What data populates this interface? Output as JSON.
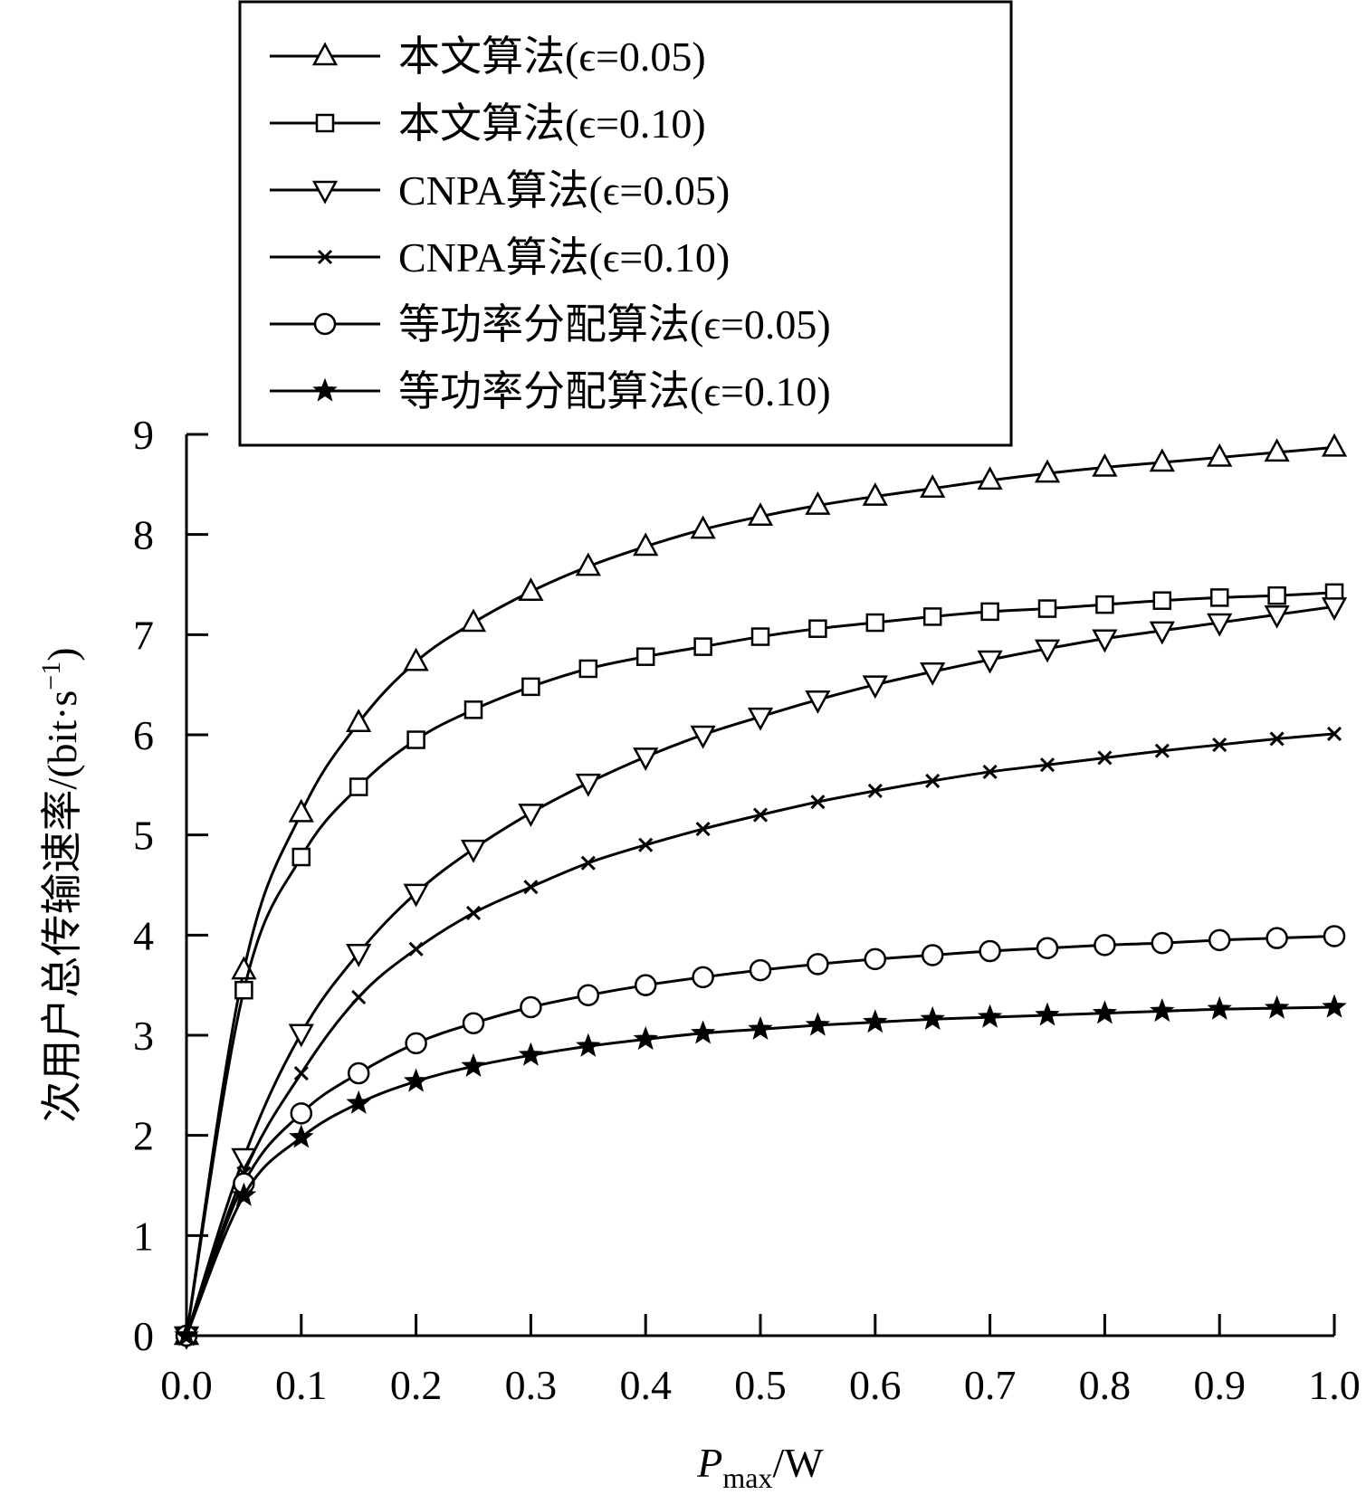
{
  "chart_data": {
    "type": "line",
    "xlabel": "P_max/W",
    "xlabel_parts": {
      "main": "P",
      "sub": "max",
      "unit": "/W"
    },
    "ylabel": "次用户总传输速率/(bit·s⁻¹)",
    "ylabel_parts": {
      "main": "次用户总传输速率/(bit·s",
      "sup": "−1",
      "close": ")"
    },
    "xlim": [
      0,
      1
    ],
    "ylim": [
      0,
      9
    ],
    "x_ticks": [
      "0.0",
      "0.1",
      "0.2",
      "0.3",
      "0.4",
      "0.5",
      "0.6",
      "0.7",
      "0.8",
      "0.9",
      "1.0"
    ],
    "y_ticks": [
      "0",
      "1",
      "2",
      "3",
      "4",
      "5",
      "6",
      "7",
      "8",
      "9"
    ],
    "grid": false,
    "legend_position": "top",
    "x": [
      0,
      0.05,
      0.1,
      0.15,
      0.2,
      0.25,
      0.3,
      0.35,
      0.4,
      0.45,
      0.5,
      0.55,
      0.6,
      0.65,
      0.7,
      0.75,
      0.8,
      0.85,
      0.9,
      0.95,
      1.0
    ],
    "series": [
      {
        "name": "本文算法(ϵ=0.05)",
        "marker": "triangle-up",
        "values": [
          0,
          3.65,
          5.22,
          6.12,
          6.73,
          7.12,
          7.43,
          7.68,
          7.88,
          8.05,
          8.18,
          8.29,
          8.38,
          8.46,
          8.54,
          8.61,
          8.67,
          8.72,
          8.77,
          8.82,
          8.87
        ]
      },
      {
        "name": "本文算法(ϵ=0.10)",
        "marker": "square",
        "values": [
          0,
          3.45,
          4.78,
          5.48,
          5.95,
          6.25,
          6.48,
          6.66,
          6.78,
          6.88,
          6.98,
          7.06,
          7.12,
          7.18,
          7.23,
          7.26,
          7.3,
          7.34,
          7.37,
          7.39,
          7.42
        ]
      },
      {
        "name": "CNPA算法(ϵ=0.05)",
        "marker": "triangle-down",
        "values": [
          0,
          1.78,
          3.02,
          3.82,
          4.42,
          4.86,
          5.22,
          5.52,
          5.78,
          6.0,
          6.18,
          6.35,
          6.5,
          6.63,
          6.75,
          6.86,
          6.96,
          7.04,
          7.12,
          7.2,
          7.28
        ]
      },
      {
        "name": "CNPA算法(ϵ=0.10)",
        "marker": "cross",
        "values": [
          0,
          1.62,
          2.62,
          3.38,
          3.86,
          4.22,
          4.48,
          4.72,
          4.9,
          5.06,
          5.2,
          5.33,
          5.44,
          5.54,
          5.63,
          5.7,
          5.77,
          5.84,
          5.9,
          5.96,
          6.01
        ]
      },
      {
        "name": "等功率分配算法(ϵ=0.05)",
        "marker": "circle",
        "values": [
          0,
          1.52,
          2.22,
          2.62,
          2.92,
          3.12,
          3.28,
          3.4,
          3.5,
          3.58,
          3.65,
          3.71,
          3.76,
          3.8,
          3.84,
          3.87,
          3.9,
          3.92,
          3.95,
          3.97,
          3.99
        ]
      },
      {
        "name": "等功率分配算法(ϵ=0.10)",
        "marker": "star",
        "values": [
          0,
          1.4,
          1.98,
          2.32,
          2.54,
          2.69,
          2.8,
          2.89,
          2.96,
          3.02,
          3.06,
          3.1,
          3.13,
          3.16,
          3.18,
          3.2,
          3.22,
          3.24,
          3.26,
          3.27,
          3.28
        ]
      }
    ]
  }
}
